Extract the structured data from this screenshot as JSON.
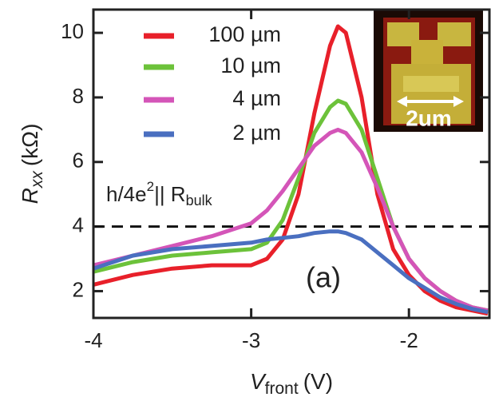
{
  "chart_data": {
    "type": "line",
    "x_label_parts": [
      "V",
      "front",
      "(V)"
    ],
    "y_label_parts": [
      "R",
      "xx",
      "(kΩ)"
    ],
    "panel_label": "(a)",
    "reference_line": {
      "value": 4,
      "label_parts": [
        "h/4e",
        "2",
        "|| R",
        "bulk"
      ]
    },
    "inset_label": "2um",
    "x": [
      -4,
      -3.75,
      -3.5,
      -3.25,
      -3,
      -2.9,
      -2.8,
      -2.7,
      -2.6,
      -2.5,
      -2.45,
      -2.4,
      -2.3,
      -2.2,
      -2.1,
      -2,
      -1.9,
      -1.8,
      -1.7,
      -1.6,
      -1.5
    ],
    "series": [
      {
        "name": "100 µm",
        "color": "#e8202a",
        "values": [
          2.2,
          2.5,
          2.7,
          2.8,
          2.8,
          3.0,
          3.6,
          5.0,
          7.5,
          9.6,
          10.2,
          10.0,
          8.0,
          5.0,
          3.3,
          2.5,
          2.0,
          1.7,
          1.5,
          1.4,
          1.3
        ]
      },
      {
        "name": "10 µm",
        "color": "#6cc23a",
        "values": [
          2.6,
          2.9,
          3.1,
          3.2,
          3.3,
          3.5,
          4.2,
          5.5,
          6.9,
          7.7,
          7.9,
          7.8,
          7.0,
          5.5,
          4.0,
          3.0,
          2.4,
          2.0,
          1.7,
          1.5,
          1.4
        ]
      },
      {
        "name": "4 µm",
        "color": "#d455b8",
        "values": [
          2.8,
          3.1,
          3.4,
          3.7,
          4.1,
          4.5,
          5.1,
          5.8,
          6.5,
          6.9,
          7.0,
          6.9,
          6.3,
          5.2,
          4.0,
          3.0,
          2.4,
          2.0,
          1.7,
          1.5,
          1.4
        ]
      },
      {
        "name": "2 µm",
        "color": "#4a6fc0",
        "values": [
          2.7,
          3.1,
          3.3,
          3.4,
          3.5,
          3.6,
          3.65,
          3.7,
          3.8,
          3.85,
          3.85,
          3.8,
          3.6,
          3.2,
          2.8,
          2.4,
          2.1,
          1.8,
          1.6,
          1.45,
          1.35
        ]
      }
    ],
    "xlim": [
      -4,
      -1.49
    ],
    "ylim": [
      1.17,
      10.72
    ],
    "xticks": [
      -4,
      -3,
      -2
    ],
    "yticks": [
      2,
      4,
      6,
      8,
      10
    ]
  }
}
